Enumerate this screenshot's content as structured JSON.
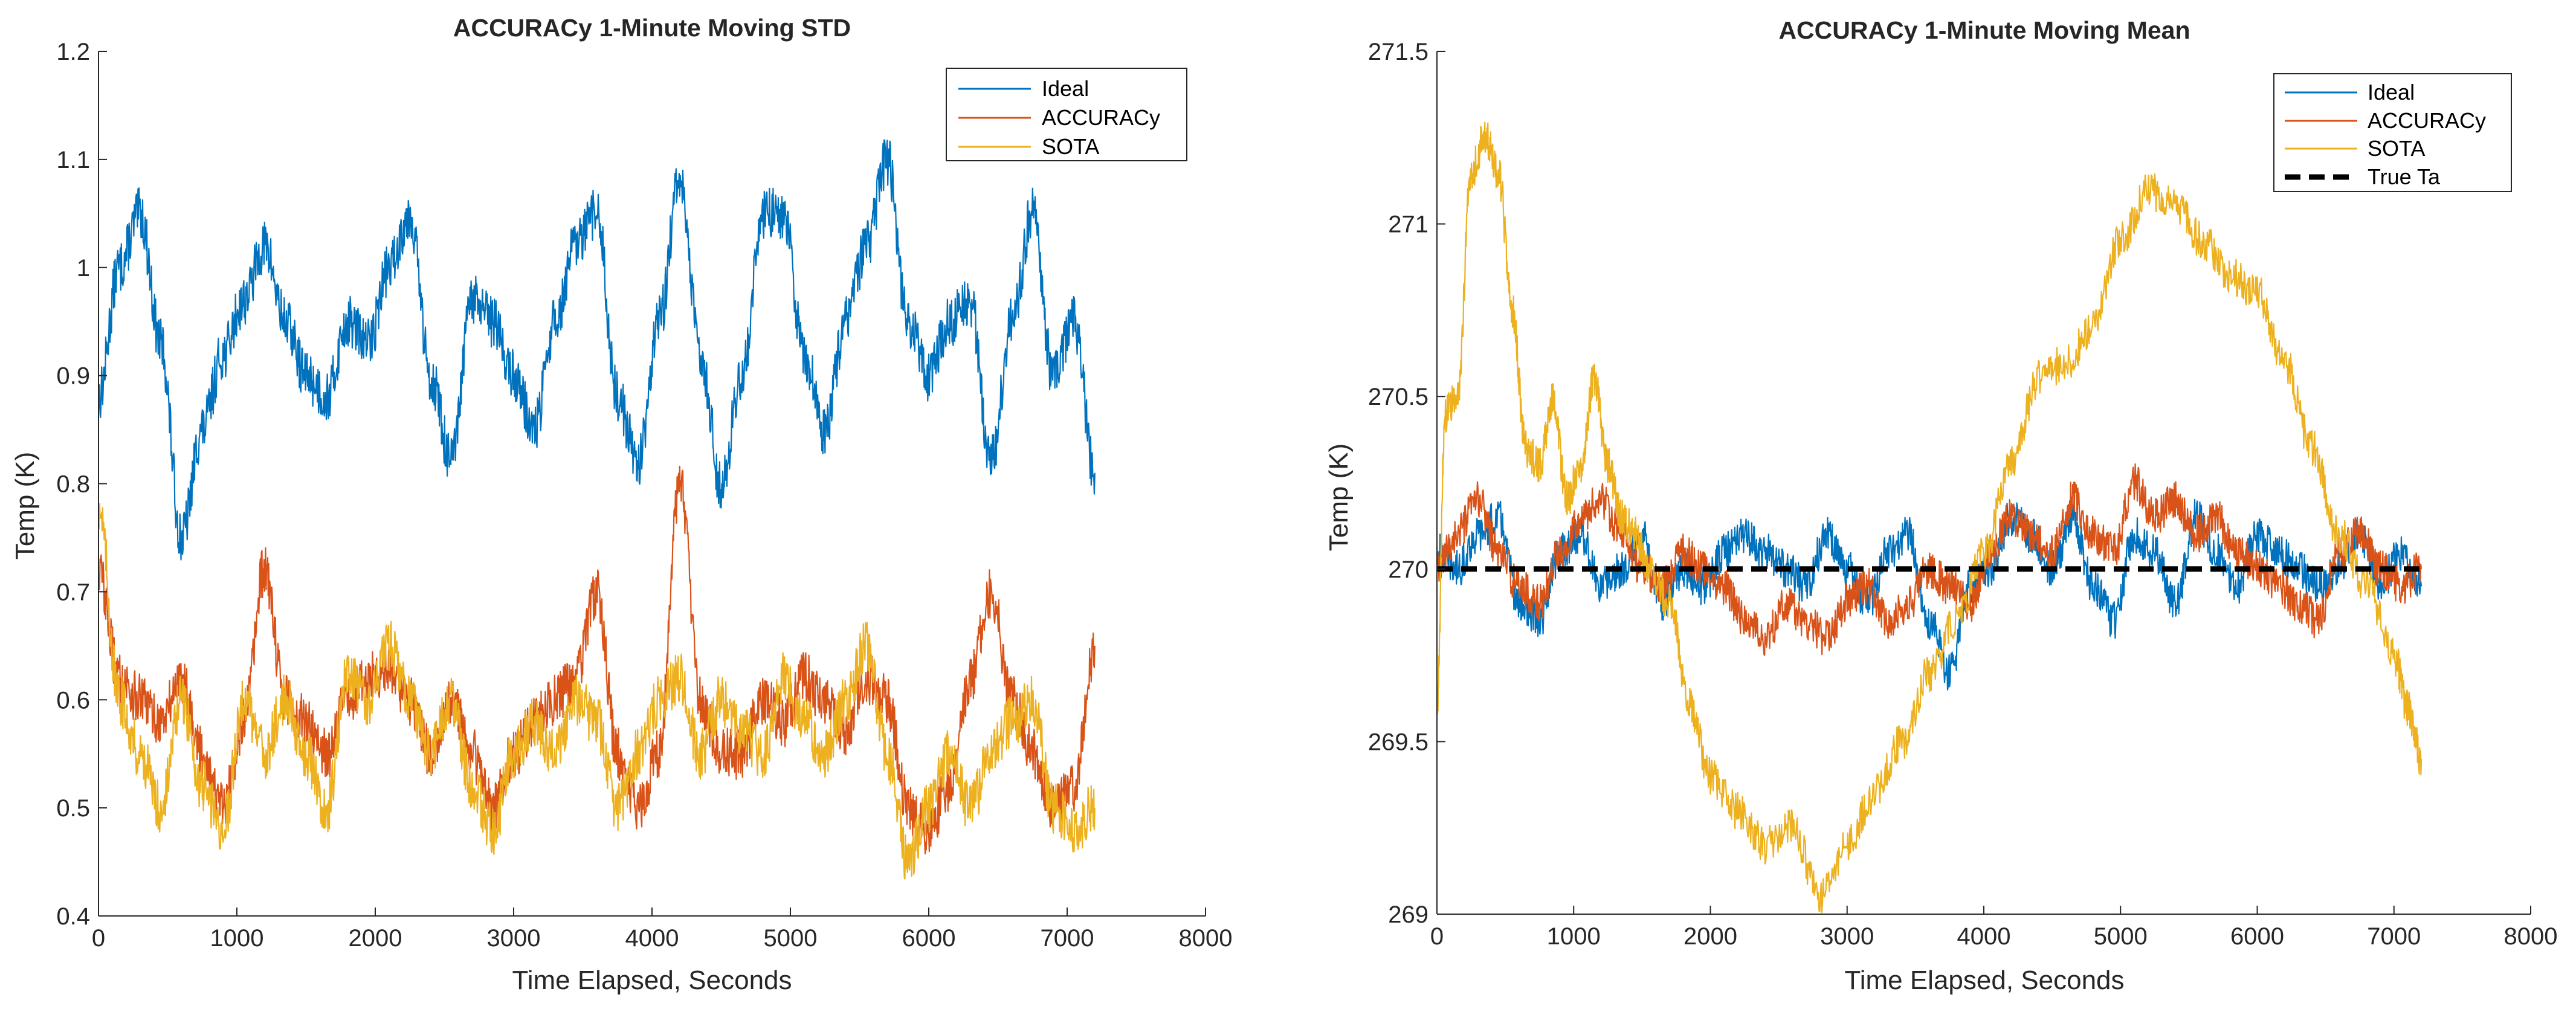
{
  "colors": {
    "ideal": "#0072BD",
    "accuracy": "#D95319",
    "sota": "#EDB120",
    "true_ta": "#000000",
    "axis": "#262626"
  },
  "chart_data": [
    {
      "type": "line",
      "title": "ACCURACy 1-Minute Moving STD",
      "xlabel": "Time Elapsed, Seconds",
      "ylabel": "Temp (K)",
      "xlim": [
        0,
        8000
      ],
      "ylim": [
        0.4,
        1.2
      ],
      "xticks": [
        0,
        1000,
        2000,
        3000,
        4000,
        5000,
        6000,
        7000,
        8000
      ],
      "xtick_labels": [
        "0",
        "1000",
        "2000",
        "3000",
        "4000",
        "5000",
        "6000",
        "7000",
        "8000"
      ],
      "yticks": [
        0.4,
        0.5,
        0.6,
        0.7,
        0.8,
        0.9,
        1.0,
        1.1,
        1.2
      ],
      "ytick_labels": [
        "0.4",
        "0.5",
        "0.6",
        "0.7",
        "0.8",
        "0.9",
        "1",
        "1.1",
        "1.2"
      ],
      "legend_position": "top-right",
      "series": [
        {
          "name": "Ideal",
          "color_key": "ideal",
          "x": [
            0,
            150,
            300,
            450,
            600,
            750,
            900,
            1050,
            1200,
            1350,
            1500,
            1650,
            1800,
            1950,
            2100,
            2250,
            2400,
            2550,
            2700,
            2850,
            3000,
            3150,
            3300,
            3450,
            3600,
            3750,
            3900,
            4050,
            4200,
            4350,
            4500,
            4650,
            4800,
            4950,
            5100,
            5250,
            5400,
            5550,
            5700,
            5850,
            6000,
            6150,
            6300,
            6450,
            6600,
            6750,
            6900,
            7050,
            7200
          ],
          "values": [
            0.88,
            1.0,
            1.05,
            0.93,
            0.75,
            0.85,
            0.92,
            0.97,
            1.02,
            0.95,
            0.9,
            0.88,
            0.95,
            0.93,
            1.0,
            1.05,
            0.9,
            0.82,
            0.97,
            0.95,
            0.9,
            0.85,
            0.95,
            1.02,
            1.05,
            0.88,
            0.82,
            0.95,
            1.08,
            0.92,
            0.8,
            0.9,
            1.05,
            1.05,
            0.92,
            0.85,
            0.95,
            1.02,
            1.1,
            0.95,
            0.9,
            0.95,
            0.97,
            0.82,
            0.95,
            1.05,
            0.9,
            0.95,
            0.81
          ]
        },
        {
          "name": "ACCURACy",
          "color_key": "accuracy",
          "x": [
            0,
            150,
            300,
            450,
            600,
            750,
            900,
            1050,
            1200,
            1350,
            1500,
            1650,
            1800,
            1950,
            2100,
            2250,
            2400,
            2550,
            2700,
            2850,
            3000,
            3150,
            3300,
            3450,
            3600,
            3750,
            3900,
            4050,
            4200,
            4350,
            4500,
            4650,
            4800,
            4950,
            5100,
            5250,
            5400,
            5550,
            5700,
            5850,
            6000,
            6150,
            6300,
            6450,
            6600,
            6750,
            6900,
            7050,
            7200
          ],
          "values": [
            0.72,
            0.62,
            0.6,
            0.58,
            0.62,
            0.55,
            0.5,
            0.58,
            0.72,
            0.6,
            0.58,
            0.55,
            0.6,
            0.62,
            0.63,
            0.6,
            0.55,
            0.6,
            0.55,
            0.5,
            0.55,
            0.58,
            0.6,
            0.62,
            0.7,
            0.55,
            0.5,
            0.55,
            0.8,
            0.6,
            0.55,
            0.55,
            0.6,
            0.58,
            0.62,
            0.6,
            0.57,
            0.62,
            0.6,
            0.5,
            0.48,
            0.52,
            0.62,
            0.7,
            0.6,
            0.55,
            0.5,
            0.52,
            0.65
          ]
        },
        {
          "name": "SOTA",
          "color_key": "sota",
          "x": [
            0,
            150,
            300,
            450,
            600,
            750,
            900,
            1050,
            1200,
            1350,
            1500,
            1650,
            1800,
            1950,
            2100,
            2250,
            2400,
            2550,
            2700,
            2850,
            3000,
            3150,
            3300,
            3450,
            3600,
            3750,
            3900,
            4050,
            4200,
            4350,
            4500,
            4650,
            4800,
            4950,
            5100,
            5250,
            5400,
            5550,
            5700,
            5850,
            6000,
            6150,
            6300,
            6450,
            6600,
            6750,
            6900,
            7050,
            7200
          ],
          "values": [
            0.78,
            0.6,
            0.55,
            0.5,
            0.6,
            0.52,
            0.48,
            0.6,
            0.55,
            0.6,
            0.55,
            0.5,
            0.62,
            0.6,
            0.65,
            0.6,
            0.55,
            0.6,
            0.52,
            0.48,
            0.55,
            0.58,
            0.55,
            0.6,
            0.58,
            0.5,
            0.55,
            0.6,
            0.62,
            0.55,
            0.6,
            0.57,
            0.55,
            0.62,
            0.58,
            0.55,
            0.6,
            0.65,
            0.55,
            0.45,
            0.5,
            0.55,
            0.5,
            0.55,
            0.58,
            0.6,
            0.5,
            0.48,
            0.5
          ]
        }
      ]
    },
    {
      "type": "line",
      "title": "ACCURACy 1-Minute Moving Mean",
      "xlabel": "Time Elapsed, Seconds",
      "ylabel": "Temp (K)",
      "xlim": [
        0,
        8000
      ],
      "ylim": [
        269,
        271.5
      ],
      "xticks": [
        0,
        1000,
        2000,
        3000,
        4000,
        5000,
        6000,
        7000,
        8000
      ],
      "xtick_labels": [
        "0",
        "1000",
        "2000",
        "3000",
        "4000",
        "5000",
        "6000",
        "7000",
        "8000"
      ],
      "yticks": [
        269,
        269.5,
        270,
        270.5,
        271,
        271.5
      ],
      "ytick_labels": [
        "269",
        "269.5",
        "270",
        "270.5",
        "271",
        "271.5"
      ],
      "legend_position": "top-right",
      "series": [
        {
          "name": "Ideal",
          "color_key": "ideal",
          "x": [
            0,
            150,
            300,
            450,
            600,
            750,
            900,
            1050,
            1200,
            1350,
            1500,
            1650,
            1800,
            1950,
            2100,
            2250,
            2400,
            2550,
            2700,
            2850,
            3000,
            3150,
            3300,
            3450,
            3600,
            3750,
            3900,
            4050,
            4200,
            4350,
            4500,
            4650,
            4800,
            4950,
            5100,
            5250,
            5400,
            5550,
            5700,
            5850,
            6000,
            6150,
            6300,
            6450,
            6600,
            6750,
            6900,
            7050,
            7200
          ],
          "values": [
            270.05,
            270.0,
            270.1,
            270.15,
            269.9,
            269.85,
            270.05,
            270.1,
            269.95,
            270.0,
            270.1,
            269.9,
            270.0,
            269.95,
            270.05,
            270.1,
            270.05,
            270.0,
            269.95,
            270.1,
            270.0,
            269.9,
            270.05,
            270.1,
            269.85,
            269.7,
            269.95,
            270.0,
            270.15,
            270.1,
            270.0,
            270.15,
            269.95,
            269.85,
            270.1,
            270.05,
            269.9,
            270.15,
            270.05,
            269.95,
            270.1,
            270.05,
            270.0,
            269.95,
            270.0,
            270.1,
            269.95,
            270.05,
            269.95
          ]
        },
        {
          "name": "ACCURACy",
          "color_key": "accuracy",
          "x": [
            0,
            150,
            300,
            450,
            600,
            750,
            900,
            1050,
            1200,
            1350,
            1500,
            1650,
            1800,
            1950,
            2100,
            2250,
            2400,
            2550,
            2700,
            2850,
            3000,
            3150,
            3300,
            3450,
            3600,
            3750,
            3900,
            4050,
            4200,
            4350,
            4500,
            4650,
            4800,
            4950,
            5100,
            5250,
            5400,
            5550,
            5700,
            5850,
            6000,
            6150,
            6300,
            6450,
            6600,
            6750,
            6900,
            7050,
            7200
          ],
          "values": [
            270.0,
            270.1,
            270.2,
            270.05,
            269.95,
            269.9,
            270.05,
            270.15,
            270.2,
            270.1,
            270.0,
            269.95,
            270.05,
            270.0,
            269.95,
            269.85,
            269.8,
            269.9,
            269.85,
            269.8,
            269.9,
            269.95,
            269.85,
            269.9,
            270.0,
            269.95,
            269.9,
            270.05,
            270.15,
            270.1,
            270.05,
            270.2,
            270.1,
            270.05,
            270.25,
            270.15,
            270.2,
            270.1,
            270.15,
            270.05,
            270.0,
            269.95,
            269.9,
            269.85,
            270.05,
            270.1,
            270.0,
            269.95,
            270.0
          ]
        },
        {
          "name": "SOTA",
          "color_key": "sota",
          "x": [
            0,
            60,
            150,
            250,
            350,
            450,
            550,
            650,
            750,
            850,
            950,
            1050,
            1150,
            1250,
            1350,
            1450,
            1550,
            1700,
            1850,
            2000,
            2200,
            2400,
            2600,
            2800,
            3000,
            3200,
            3400,
            3600,
            3800,
            4000,
            4200,
            4400,
            4600,
            4800,
            5000,
            5200,
            5400,
            5600,
            5800,
            6000,
            6200,
            6400,
            6600,
            6800,
            7000,
            7100,
            7200
          ],
          "values": [
            269.6,
            270.45,
            270.5,
            271.15,
            271.25,
            271.15,
            270.75,
            270.35,
            270.3,
            270.5,
            270.2,
            270.3,
            270.55,
            270.3,
            270.15,
            270.1,
            270.0,
            269.9,
            269.6,
            269.4,
            269.3,
            269.2,
            269.25,
            269.05,
            269.2,
            269.35,
            269.5,
            269.7,
            269.85,
            270.05,
            270.3,
            270.55,
            270.6,
            270.7,
            270.95,
            271.1,
            271.05,
            270.95,
            270.85,
            270.8,
            270.6,
            270.35,
            270.1,
            269.95,
            269.75,
            269.6,
            269.45
          ]
        },
        {
          "name": "True Ta",
          "color_key": "true_ta",
          "dashed": true,
          "x": [
            0,
            7200
          ],
          "values": [
            270,
            270
          ]
        }
      ]
    }
  ]
}
